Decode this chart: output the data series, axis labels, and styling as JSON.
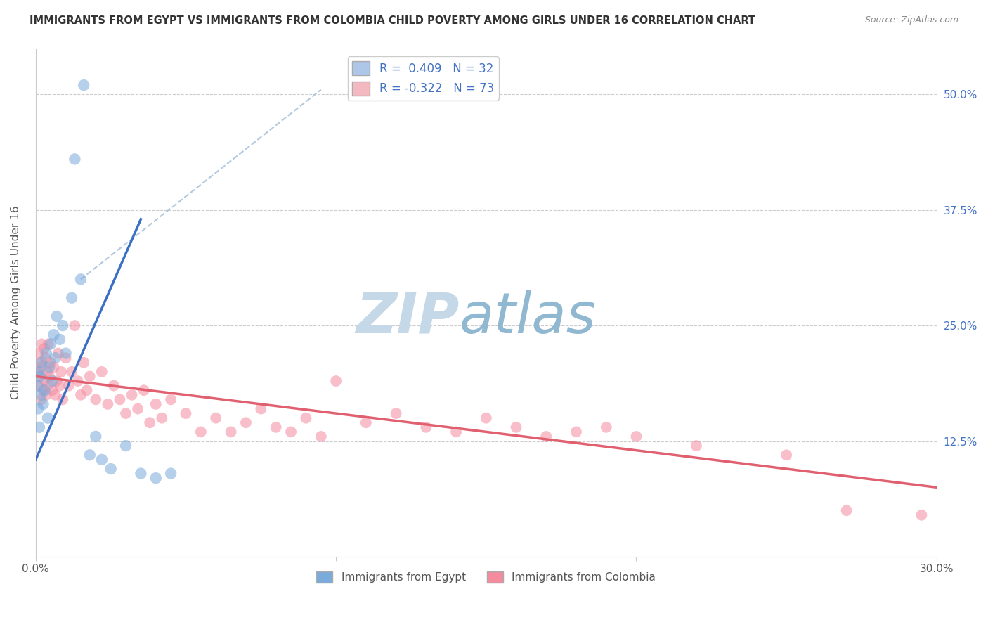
{
  "title": "IMMIGRANTS FROM EGYPT VS IMMIGRANTS FROM COLOMBIA CHILD POVERTY AMONG GIRLS UNDER 16 CORRELATION CHART",
  "source": "Source: ZipAtlas.com",
  "ylabel": "Child Poverty Among Girls Under 16",
  "xmin": 0.0,
  "xmax": 30.0,
  "ymin": 0.0,
  "ymax": 55.0,
  "yticks": [
    0.0,
    12.5,
    25.0,
    37.5,
    50.0
  ],
  "ytick_labels": [
    "",
    "12.5%",
    "25.0%",
    "37.5%",
    "50.0%"
  ],
  "xticks": [
    0.0,
    10.0,
    20.0,
    30.0
  ],
  "xtick_labels": [
    "0.0%",
    "",
    "",
    "30.0%"
  ],
  "legend_items": [
    {
      "label": "R =  0.409   N = 32",
      "color": "#aec6e8"
    },
    {
      "label": "R = -0.322   N = 73",
      "color": "#f4b8c1"
    }
  ],
  "legend_bottom": [
    "Immigrants from Egypt",
    "Immigrants from Colombia"
  ],
  "egypt_color": "#7aabdb",
  "colombia_color": "#f48ca0",
  "egypt_scatter": [
    [
      0.05,
      18.5
    ],
    [
      0.08,
      16.0
    ],
    [
      0.1,
      20.0
    ],
    [
      0.12,
      14.0
    ],
    [
      0.15,
      19.5
    ],
    [
      0.18,
      17.5
    ],
    [
      0.2,
      21.0
    ],
    [
      0.25,
      16.5
    ],
    [
      0.3,
      18.0
    ],
    [
      0.35,
      22.0
    ],
    [
      0.4,
      15.0
    ],
    [
      0.45,
      20.5
    ],
    [
      0.5,
      23.0
    ],
    [
      0.55,
      19.0
    ],
    [
      0.6,
      24.0
    ],
    [
      0.65,
      21.5
    ],
    [
      0.7,
      26.0
    ],
    [
      0.8,
      23.5
    ],
    [
      0.9,
      25.0
    ],
    [
      1.0,
      22.0
    ],
    [
      1.2,
      28.0
    ],
    [
      1.5,
      30.0
    ],
    [
      1.8,
      11.0
    ],
    [
      2.0,
      13.0
    ],
    [
      2.2,
      10.5
    ],
    [
      2.5,
      9.5
    ],
    [
      3.0,
      12.0
    ],
    [
      3.5,
      9.0
    ],
    [
      4.0,
      8.5
    ],
    [
      4.5,
      9.0
    ],
    [
      1.3,
      43.0
    ],
    [
      1.6,
      51.0
    ]
  ],
  "colombia_scatter": [
    [
      0.05,
      20.0
    ],
    [
      0.08,
      18.5
    ],
    [
      0.1,
      22.0
    ],
    [
      0.12,
      19.5
    ],
    [
      0.15,
      21.0
    ],
    [
      0.18,
      17.0
    ],
    [
      0.2,
      23.0
    ],
    [
      0.22,
      20.5
    ],
    [
      0.25,
      18.0
    ],
    [
      0.28,
      22.5
    ],
    [
      0.3,
      19.0
    ],
    [
      0.32,
      21.5
    ],
    [
      0.35,
      17.5
    ],
    [
      0.38,
      20.0
    ],
    [
      0.4,
      18.5
    ],
    [
      0.42,
      23.0
    ],
    [
      0.45,
      19.5
    ],
    [
      0.5,
      21.0
    ],
    [
      0.55,
      18.0
    ],
    [
      0.6,
      20.5
    ],
    [
      0.65,
      17.5
    ],
    [
      0.7,
      19.0
    ],
    [
      0.75,
      22.0
    ],
    [
      0.8,
      18.5
    ],
    [
      0.85,
      20.0
    ],
    [
      0.9,
      17.0
    ],
    [
      1.0,
      21.5
    ],
    [
      1.1,
      18.5
    ],
    [
      1.2,
      20.0
    ],
    [
      1.3,
      25.0
    ],
    [
      1.4,
      19.0
    ],
    [
      1.5,
      17.5
    ],
    [
      1.6,
      21.0
    ],
    [
      1.7,
      18.0
    ],
    [
      1.8,
      19.5
    ],
    [
      2.0,
      17.0
    ],
    [
      2.2,
      20.0
    ],
    [
      2.4,
      16.5
    ],
    [
      2.6,
      18.5
    ],
    [
      2.8,
      17.0
    ],
    [
      3.0,
      15.5
    ],
    [
      3.2,
      17.5
    ],
    [
      3.4,
      16.0
    ],
    [
      3.6,
      18.0
    ],
    [
      3.8,
      14.5
    ],
    [
      4.0,
      16.5
    ],
    [
      4.2,
      15.0
    ],
    [
      4.5,
      17.0
    ],
    [
      5.0,
      15.5
    ],
    [
      5.5,
      13.5
    ],
    [
      6.0,
      15.0
    ],
    [
      6.5,
      13.5
    ],
    [
      7.0,
      14.5
    ],
    [
      7.5,
      16.0
    ],
    [
      8.0,
      14.0
    ],
    [
      8.5,
      13.5
    ],
    [
      9.0,
      15.0
    ],
    [
      9.5,
      13.0
    ],
    [
      10.0,
      19.0
    ],
    [
      11.0,
      14.5
    ],
    [
      12.0,
      15.5
    ],
    [
      13.0,
      14.0
    ],
    [
      14.0,
      13.5
    ],
    [
      15.0,
      15.0
    ],
    [
      16.0,
      14.0
    ],
    [
      17.0,
      13.0
    ],
    [
      18.0,
      13.5
    ],
    [
      19.0,
      14.0
    ],
    [
      20.0,
      13.0
    ],
    [
      22.0,
      12.0
    ],
    [
      25.0,
      11.0
    ],
    [
      27.0,
      5.0
    ],
    [
      29.5,
      4.5
    ]
  ],
  "egypt_line": {
    "x0": 0.0,
    "y0": 10.5,
    "x1": 3.5,
    "y1": 36.5
  },
  "colombia_line": {
    "x0": 0.0,
    "y0": 19.5,
    "x1": 30.0,
    "y1": 7.5
  },
  "diagonal_line": {
    "x0": 1.5,
    "y0": 30.0,
    "x1": 9.5,
    "y1": 50.5
  },
  "watermark_zip": "ZIP",
  "watermark_atlas": "atlas",
  "watermark_color_zip": "#b8cfe0",
  "watermark_color_atlas": "#a8c4d8",
  "bg_color": "#ffffff",
  "grid_color": "#cccccc"
}
